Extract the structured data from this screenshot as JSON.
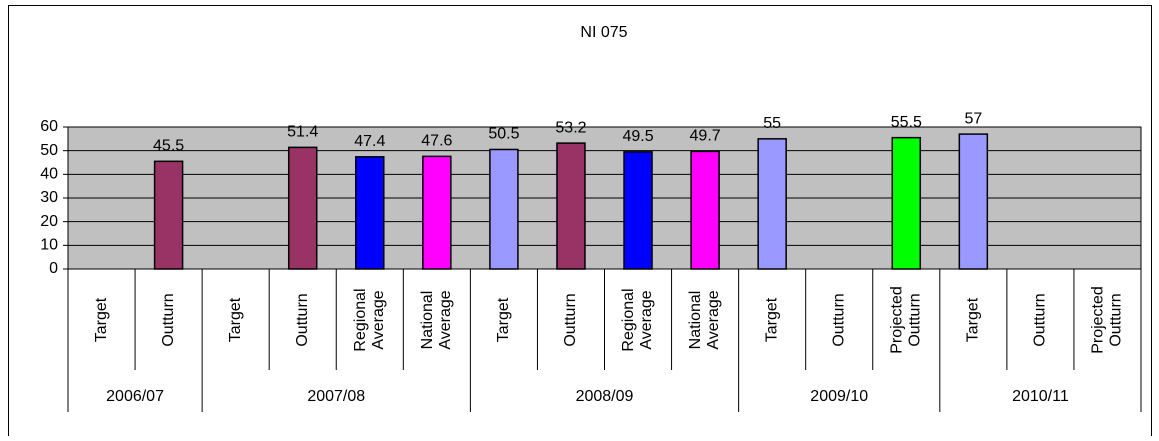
{
  "chart_data": {
    "type": "bar",
    "title": "NI 075",
    "groups": [
      {
        "name": "2006/07",
        "categories": [
          "Target",
          "Outturn"
        ]
      },
      {
        "name": "2007/08",
        "categories": [
          "Target",
          "Outturn",
          "Regional Average",
          "National Average"
        ]
      },
      {
        "name": "2008/09",
        "categories": [
          "Target",
          "Outturn",
          "Regional Average",
          "National Average"
        ]
      },
      {
        "name": "2009/10",
        "categories": [
          "Target",
          "Outturn",
          "Projected Outturn"
        ]
      },
      {
        "name": "2010/11",
        "categories": [
          "Target",
          "Outturn",
          "Projected Outturn"
        ]
      }
    ],
    "values": [
      null,
      45.5,
      null,
      51.4,
      47.4,
      47.6,
      50.5,
      53.2,
      49.5,
      49.7,
      55,
      null,
      55.5,
      57,
      null,
      null
    ],
    "colors": [
      "#9999ff",
      "#993366",
      "#9999ff",
      "#993366",
      "#0000ff",
      "#ff00ff",
      "#9999ff",
      "#993366",
      "#0000ff",
      "#ff00ff",
      "#9999ff",
      "#993366",
      "#00ff00",
      "#9999ff",
      "#993366",
      "#00ff00"
    ],
    "ylim": [
      0,
      60
    ],
    "yticks": [
      0,
      10,
      20,
      30,
      40,
      50,
      60
    ],
    "grid": true,
    "plot_background": "#c0c0c0"
  }
}
